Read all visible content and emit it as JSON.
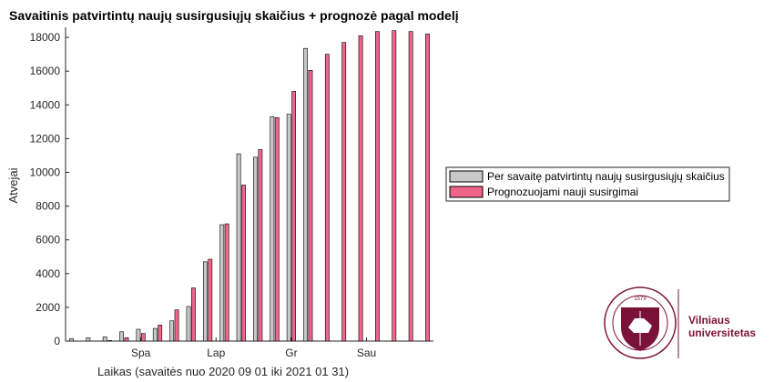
{
  "chart_data": {
    "type": "bar",
    "title": "Savaitinis patvirtintų naujų susirgusiųjų skaičius + prognozė pagal modelį",
    "xlabel": "Laikas (savaitės nuo 2020 09 01 iki 2021 01 31)",
    "ylabel": "Atvejai",
    "ylim": [
      0,
      18600
    ],
    "yticks": [
      0,
      2000,
      4000,
      6000,
      8000,
      10000,
      12000,
      14000,
      16000,
      18000
    ],
    "xtick_labels": [
      {
        "label": "Spa",
        "week": 5
      },
      {
        "label": "Lap",
        "week": 9.5
      },
      {
        "label": "Gr",
        "week": 14
      },
      {
        "label": "Sau",
        "week": 18.5
      }
    ],
    "weeks": [
      1,
      2,
      3,
      4,
      5,
      6,
      7,
      8,
      9,
      10,
      11,
      12,
      13,
      14,
      15,
      16,
      17,
      18,
      19,
      20,
      21,
      22
    ],
    "series": [
      {
        "name": "Per savaitę patvirtintų naujų susirgusiųjų skaičius",
        "color": "#c8c8c8",
        "values": [
          150,
          200,
          250,
          550,
          700,
          750,
          1200,
          2050,
          4700,
          6900,
          11100,
          10900,
          13300,
          13450,
          17350,
          null,
          null,
          null,
          null,
          null,
          null,
          null
        ]
      },
      {
        "name": "Prognozuojami nauji susirgimai",
        "color": "#f0648a",
        "values": [
          null,
          null,
          30,
          200,
          450,
          950,
          1850,
          3150,
          4850,
          6950,
          9250,
          11350,
          13250,
          14800,
          16050,
          17000,
          17700,
          18100,
          18350,
          18400,
          18350,
          18200
        ]
      }
    ],
    "legend_position": "east"
  },
  "logo": {
    "name_line1": "Vilniaus",
    "name_line2": "universitetas",
    "seal_year": "1579",
    "seal_text": "UNIVERSITAS VILNENSIS",
    "color": "#7a1237"
  }
}
